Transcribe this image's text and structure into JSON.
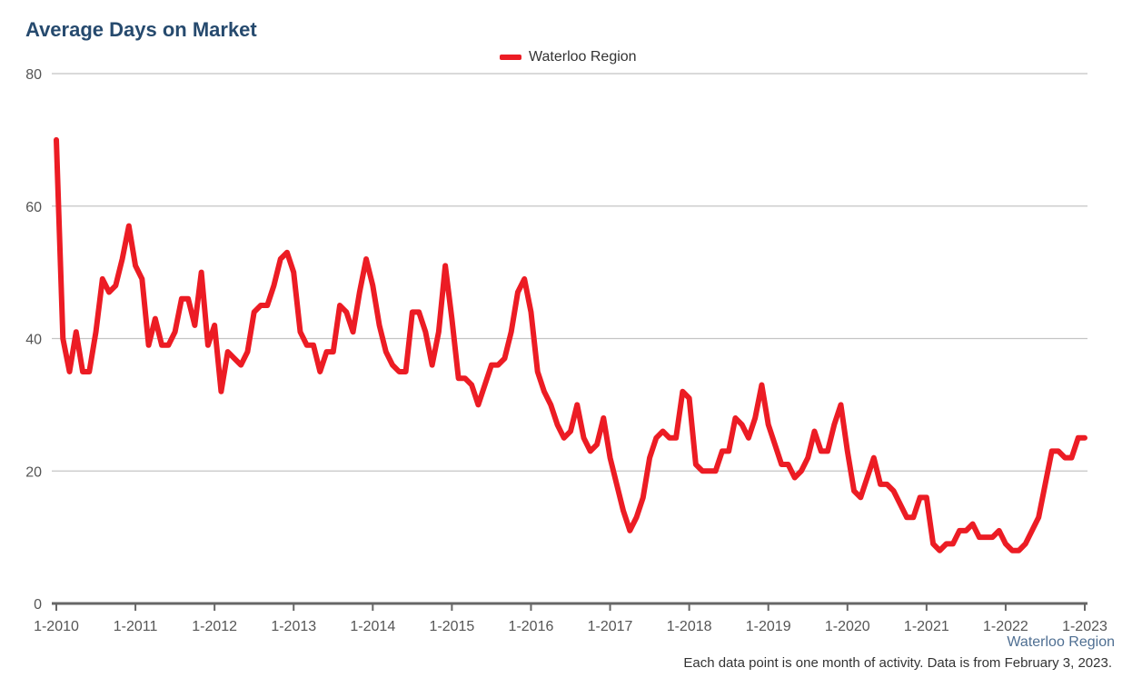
{
  "chart_data": {
    "type": "line",
    "title": "Average Days on Market",
    "xlabel": "",
    "ylabel": "",
    "ylim": [
      0,
      80
    ],
    "yticks": [
      0,
      20,
      40,
      60,
      80
    ],
    "x_tick_labels": [
      "1-2010",
      "1-2011",
      "1-2012",
      "1-2013",
      "1-2014",
      "1-2015",
      "1-2016",
      "1-2017",
      "1-2018",
      "1-2019",
      "1-2020",
      "1-2021",
      "1-2022",
      "1-2023"
    ],
    "grid": true,
    "legend_position": "top-center",
    "series": [
      {
        "name": "Waterloo Region",
        "color": "#ec1c24",
        "values": [
          70,
          40,
          35,
          41,
          35,
          35,
          41,
          49,
          47,
          48,
          52,
          57,
          51,
          49,
          39,
          43,
          39,
          39,
          41,
          46,
          46,
          42,
          50,
          39,
          42,
          32,
          38,
          37,
          36,
          38,
          44,
          45,
          45,
          48,
          52,
          53,
          50,
          41,
          39,
          39,
          35,
          38,
          38,
          45,
          44,
          41,
          47,
          52,
          48,
          42,
          38,
          36,
          35,
          35,
          44,
          44,
          41,
          36,
          41,
          51,
          43,
          34,
          34,
          33,
          30,
          33,
          36,
          36,
          37,
          41,
          47,
          49,
          44,
          35,
          32,
          30,
          27,
          25,
          26,
          30,
          25,
          23,
          24,
          28,
          22,
          18,
          14,
          11,
          13,
          16,
          22,
          25,
          26,
          25,
          25,
          32,
          31,
          21,
          20,
          20,
          20,
          23,
          23,
          28,
          27,
          25,
          28,
          33,
          27,
          24,
          21,
          21,
          19,
          20,
          22,
          26,
          23,
          23,
          27,
          30,
          23,
          17,
          16,
          19,
          22,
          18,
          18,
          17,
          15,
          13,
          13,
          16,
          16,
          9,
          8,
          9,
          9,
          11,
          11,
          12,
          10,
          10,
          10,
          11,
          9,
          8,
          8,
          9,
          11,
          13,
          18,
          23,
          23,
          22,
          22,
          25,
          25
        ]
      }
    ]
  },
  "credit": "Waterloo Region",
  "footnote": "Each data point is one month of activity. Data is from February 3, 2023."
}
